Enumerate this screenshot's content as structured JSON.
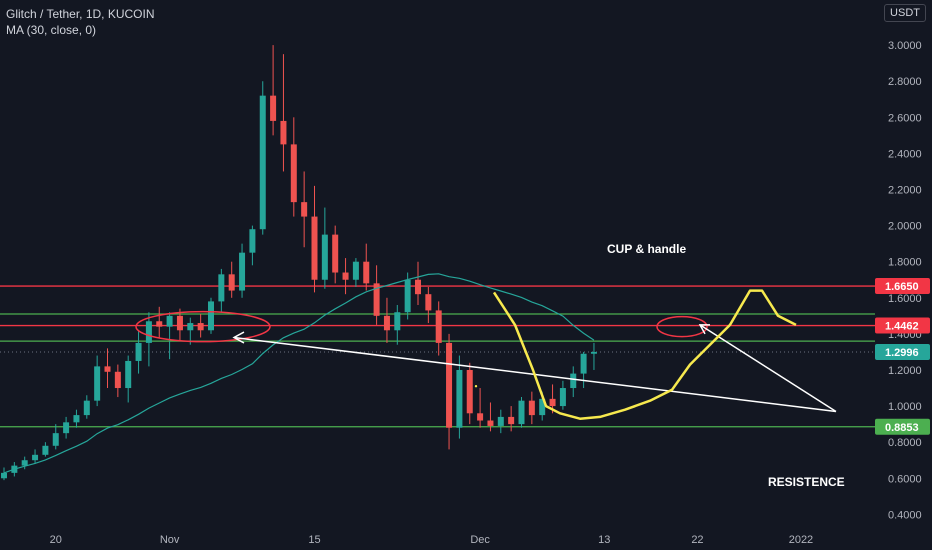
{
  "header": {
    "symbol_line": "Glitch / Tether, 1D, KUCOIN",
    "indicator_line": "MA (30, close, 0)",
    "currency_button": "USDT"
  },
  "annotations": {
    "cup_label": "CUP & handle",
    "resistance_label": "RESISTENCE"
  },
  "colors": {
    "background": "#131722",
    "up": "#26a69a",
    "down": "#ef5350",
    "ma": "#26a69a",
    "red_line": "#f23645",
    "green_line": "#4caf50",
    "yellow_drawing": "#f7e94e",
    "white_drawing": "#ffffff"
  },
  "chart_data": {
    "type": "candlestick",
    "title": "Glitch / Tether, 1D, KUCOIN",
    "y_axis": {
      "range": [
        0.33,
        3.25
      ],
      "ticks": [
        "3.0000",
        "2.8000",
        "2.6000",
        "2.4000",
        "2.2000",
        "2.0000",
        "1.8000",
        "1.6000",
        "1.4000",
        "1.2000",
        "1.0000",
        "0.8000",
        "0.6000",
        "0.4000"
      ],
      "tick_values": [
        3.0,
        2.8,
        2.6,
        2.4,
        2.2,
        2.0,
        1.8,
        1.6,
        1.4,
        1.2,
        1.0,
        0.8,
        0.6,
        0.4
      ]
    },
    "x_axis": {
      "labels": [
        {
          "index": 5,
          "label": "20"
        },
        {
          "index": 16,
          "label": "Nov"
        },
        {
          "index": 30,
          "label": "15"
        },
        {
          "index": 46,
          "label": "Dec"
        },
        {
          "index": 58,
          "label": "13"
        },
        {
          "index": 67,
          "label": "22"
        },
        {
          "index": 77,
          "label": "2022"
        }
      ]
    },
    "price_labels": [
      {
        "value": 1.665,
        "text": "1.6650",
        "color": "#f23645"
      },
      {
        "value": 1.4462,
        "text": "1.4462",
        "color": "#f23645"
      },
      {
        "value": 1.2996,
        "text": "1.2996",
        "color": "#26a69a"
      },
      {
        "value": 0.8853,
        "text": "0.8853",
        "color": "#4caf50"
      }
    ],
    "horizontal_lines": [
      {
        "value": 1.665,
        "color": "#f23645"
      },
      {
        "value": 1.4462,
        "color": "#f23645"
      },
      {
        "value": 1.51,
        "color": "#4caf50"
      },
      {
        "value": 1.36,
        "color": "#4caf50"
      },
      {
        "value": 0.8853,
        "color": "#4caf50"
      }
    ],
    "current_price_line": 1.2996,
    "candles": [
      [
        0.6,
        0.66,
        0.59,
        0.63
      ],
      [
        0.63,
        0.69,
        0.61,
        0.67
      ],
      [
        0.67,
        0.72,
        0.65,
        0.7
      ],
      [
        0.7,
        0.76,
        0.68,
        0.73
      ],
      [
        0.73,
        0.8,
        0.72,
        0.78
      ],
      [
        0.78,
        0.9,
        0.76,
        0.85
      ],
      [
        0.85,
        0.94,
        0.82,
        0.91
      ],
      [
        0.91,
        0.98,
        0.88,
        0.95
      ],
      [
        0.95,
        1.06,
        0.93,
        1.03
      ],
      [
        1.03,
        1.28,
        1.0,
        1.22
      ],
      [
        1.22,
        1.32,
        1.1,
        1.19
      ],
      [
        1.19,
        1.23,
        1.05,
        1.1
      ],
      [
        1.1,
        1.28,
        1.02,
        1.25
      ],
      [
        1.25,
        1.42,
        1.18,
        1.35
      ],
      [
        1.35,
        1.52,
        1.22,
        1.47
      ],
      [
        1.47,
        1.55,
        1.38,
        1.44
      ],
      [
        1.44,
        1.52,
        1.26,
        1.5
      ],
      [
        1.5,
        1.54,
        1.36,
        1.42
      ],
      [
        1.42,
        1.49,
        1.34,
        1.46
      ],
      [
        1.46,
        1.51,
        1.38,
        1.42
      ],
      [
        1.42,
        1.6,
        1.4,
        1.58
      ],
      [
        1.58,
        1.76,
        1.52,
        1.73
      ],
      [
        1.73,
        1.8,
        1.6,
        1.64
      ],
      [
        1.64,
        1.9,
        1.6,
        1.85
      ],
      [
        1.85,
        2.0,
        1.78,
        1.98
      ],
      [
        1.98,
        2.8,
        1.95,
        2.72
      ],
      [
        2.72,
        3.0,
        2.5,
        2.58
      ],
      [
        2.58,
        2.95,
        2.3,
        2.45
      ],
      [
        2.45,
        2.6,
        2.05,
        2.13
      ],
      [
        2.13,
        2.3,
        1.88,
        2.05
      ],
      [
        2.05,
        2.22,
        1.63,
        1.7
      ],
      [
        1.7,
        2.1,
        1.65,
        1.95
      ],
      [
        1.95,
        2.0,
        1.68,
        1.74
      ],
      [
        1.74,
        1.82,
        1.62,
        1.7
      ],
      [
        1.7,
        1.82,
        1.66,
        1.8
      ],
      [
        1.8,
        1.9,
        1.64,
        1.68
      ],
      [
        1.68,
        1.78,
        1.45,
        1.5
      ],
      [
        1.5,
        1.6,
        1.35,
        1.42
      ],
      [
        1.42,
        1.56,
        1.34,
        1.52
      ],
      [
        1.52,
        1.74,
        1.48,
        1.7
      ],
      [
        1.7,
        1.8,
        1.56,
        1.62
      ],
      [
        1.62,
        1.66,
        1.46,
        1.53
      ],
      [
        1.53,
        1.58,
        1.28,
        1.35
      ],
      [
        1.35,
        1.4,
        0.76,
        0.88
      ],
      [
        0.88,
        1.28,
        0.82,
        1.2
      ],
      [
        1.2,
        1.24,
        0.9,
        0.96
      ],
      [
        0.96,
        1.1,
        0.88,
        0.92
      ],
      [
        0.92,
        1.02,
        0.86,
        0.89
      ],
      [
        0.89,
        0.98,
        0.85,
        0.94
      ],
      [
        0.94,
        1.0,
        0.86,
        0.9
      ],
      [
        0.9,
        1.05,
        0.88,
        1.03
      ],
      [
        1.03,
        1.08,
        0.9,
        0.95
      ],
      [
        0.95,
        1.08,
        0.92,
        1.04
      ],
      [
        1.04,
        1.12,
        0.96,
        1.0
      ],
      [
        1.0,
        1.14,
        0.98,
        1.1
      ],
      [
        1.1,
        1.22,
        1.05,
        1.18
      ],
      [
        1.18,
        1.3,
        1.1,
        1.29
      ],
      [
        1.29,
        1.35,
        1.2,
        1.3
      ]
    ]
  }
}
